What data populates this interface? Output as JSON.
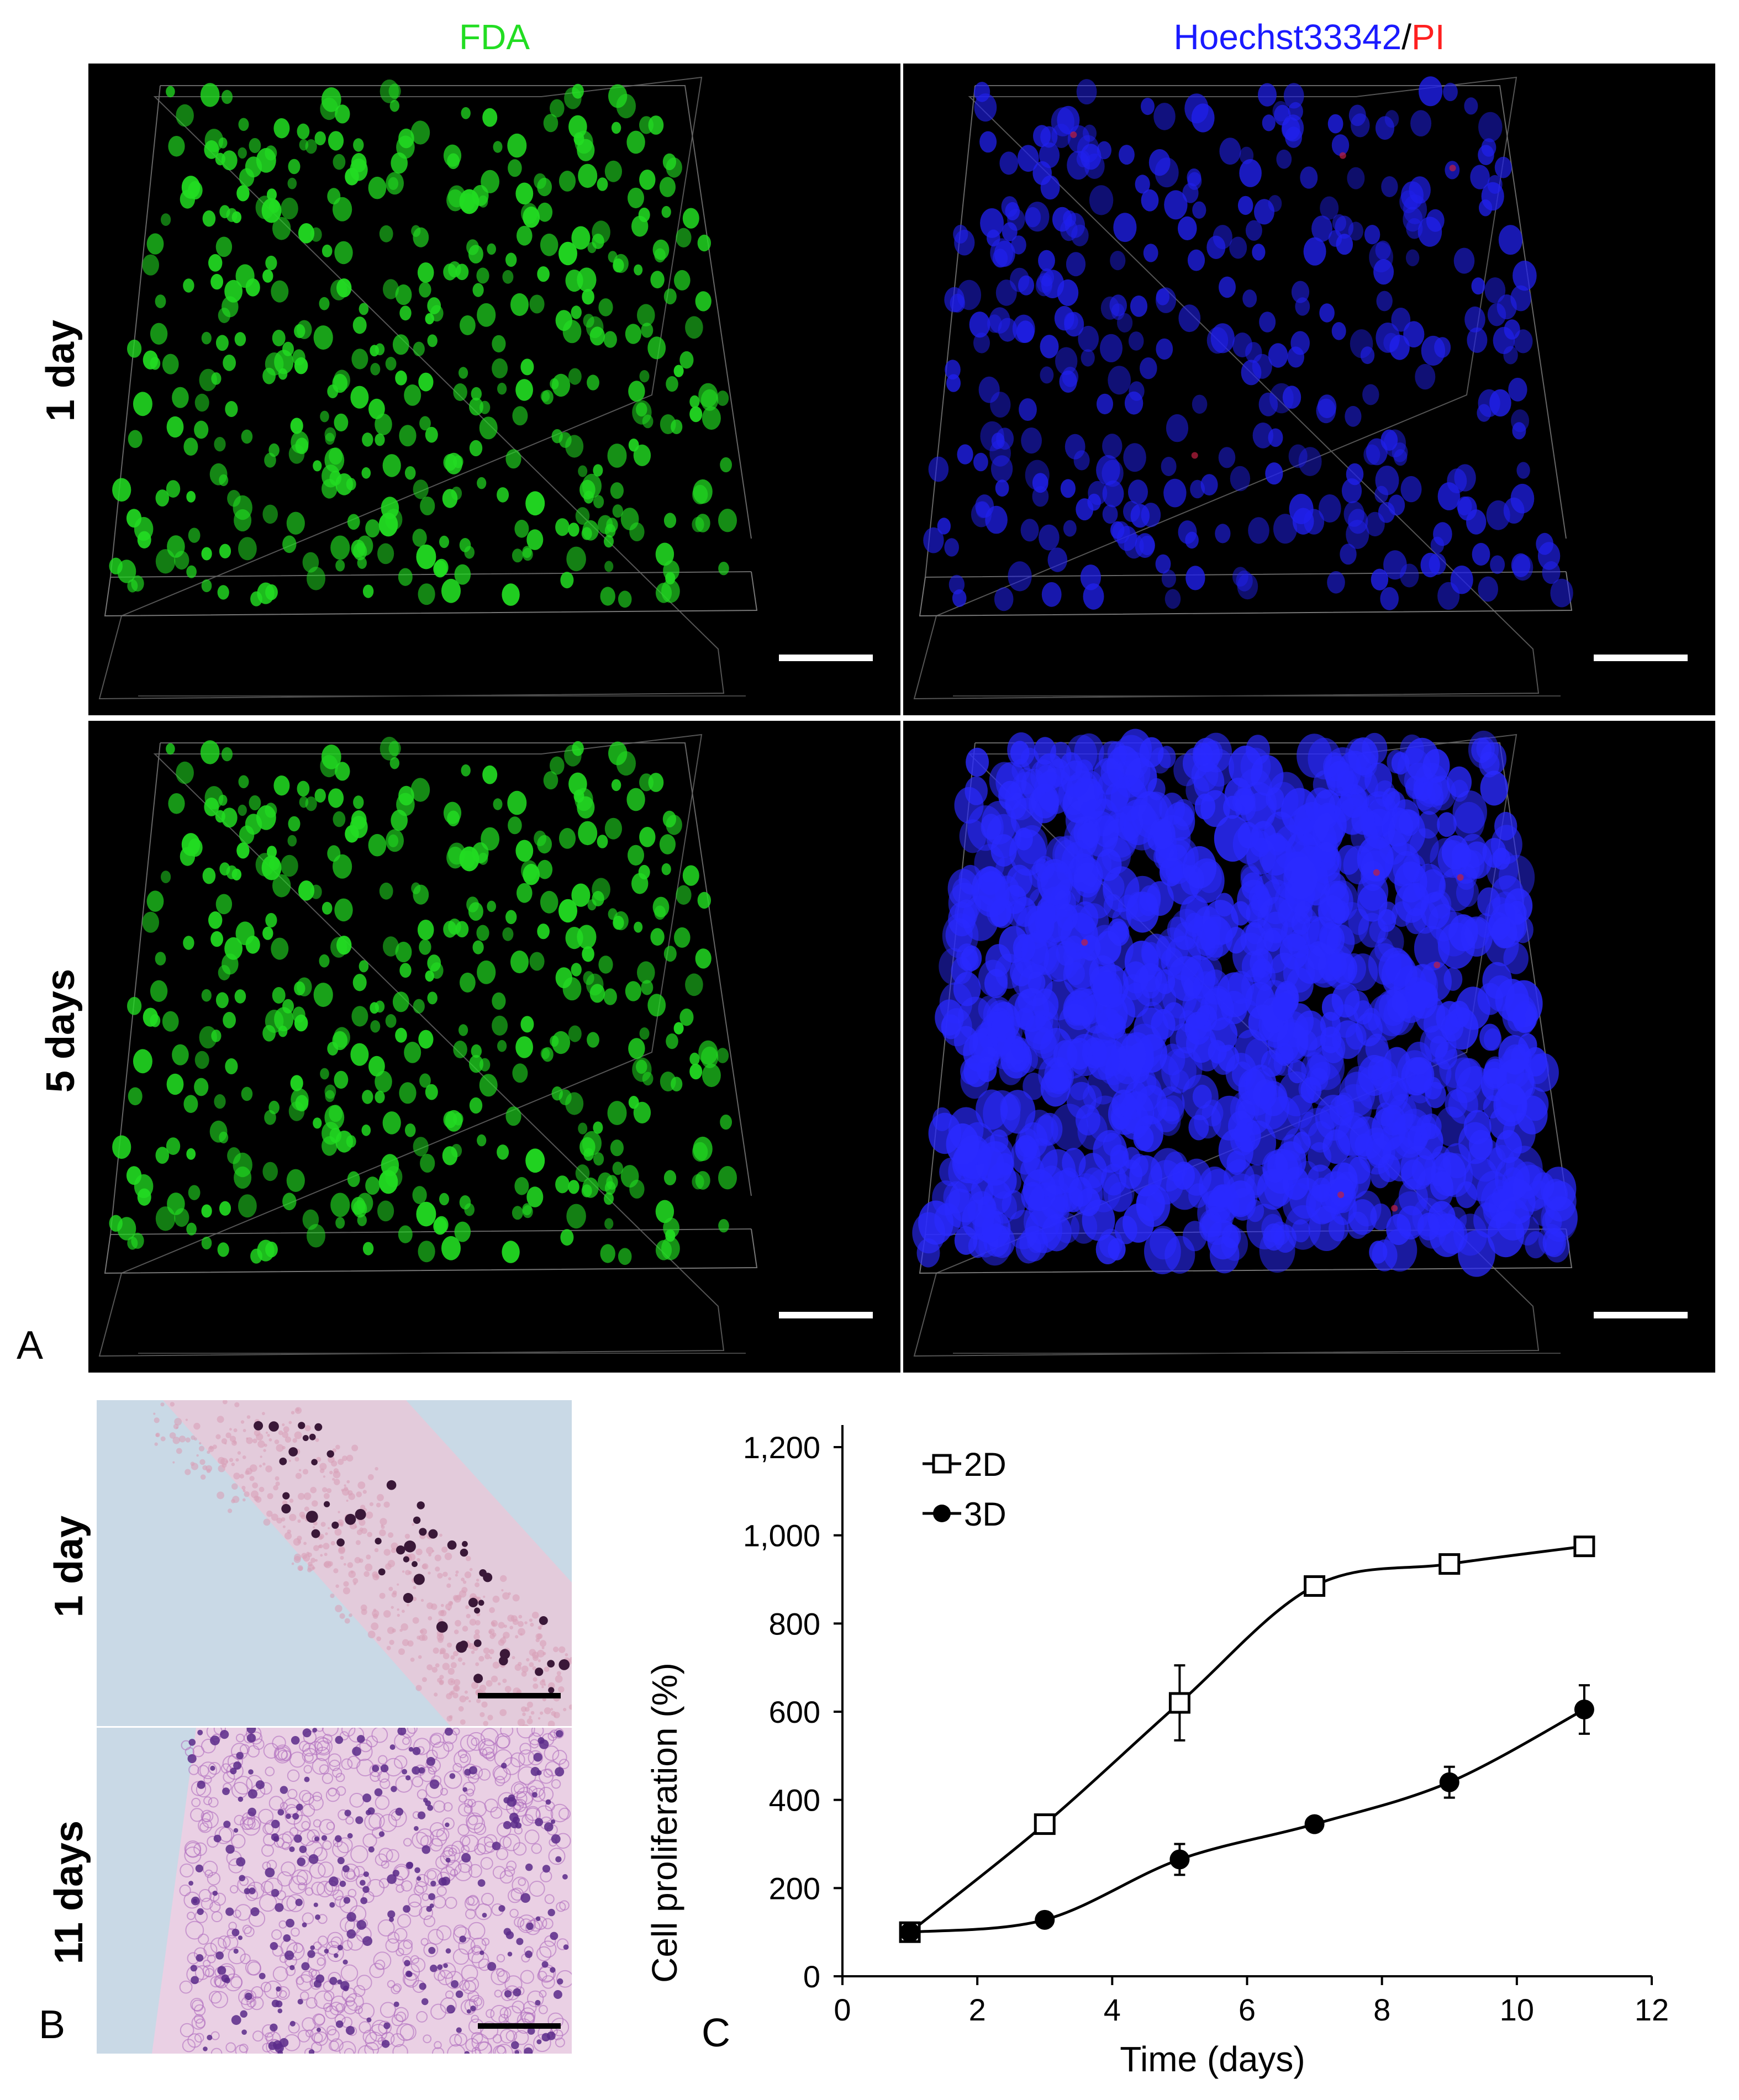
{
  "panel_a": {
    "letter": "A",
    "col1_title": "FDA",
    "col2_title_blue": "Hoechst33342",
    "col2_title_sep": "/",
    "col2_title_red": "PI",
    "rows": [
      "1 day",
      "5 days"
    ],
    "colors": {
      "fda": "#22dd22",
      "hoechst": "#1a1aff",
      "pi": "#ff2020"
    }
  },
  "panel_b": {
    "letter": "B",
    "rows": [
      "1 day",
      "11 days"
    ]
  },
  "panel_c": {
    "letter": "C"
  },
  "chart_data": {
    "type": "line",
    "title": "",
    "xlabel": "Time (days)",
    "ylabel": "Cell proliferation (%)",
    "xlim": [
      0,
      12
    ],
    "ylim": [
      0,
      1200
    ],
    "xticks": [
      "0",
      "2",
      "4",
      "6",
      "8",
      "10",
      "12"
    ],
    "yticks": [
      "0",
      "200",
      "400",
      "600",
      "800",
      "1,000",
      "1,200"
    ],
    "legend_position": "top-left",
    "series": [
      {
        "name": "2D",
        "marker": "open-square",
        "x": [
          1,
          3,
          5,
          7,
          9,
          11
        ],
        "y": [
          100,
          345,
          620,
          885,
          935,
          975
        ],
        "err": [
          0,
          0,
          85,
          15,
          0,
          0
        ]
      },
      {
        "name": "3D",
        "marker": "filled-circle",
        "x": [
          1,
          3,
          5,
          7,
          9,
          11
        ],
        "y": [
          100,
          128,
          265,
          345,
          440,
          605
        ],
        "err": [
          0,
          0,
          35,
          0,
          35,
          55
        ]
      }
    ]
  }
}
